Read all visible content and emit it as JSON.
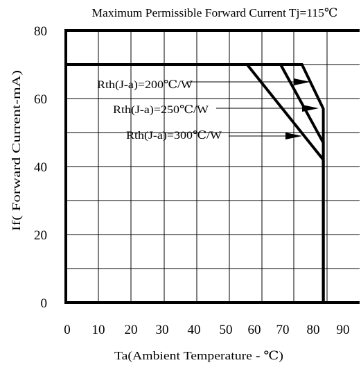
{
  "chart_data": {
    "type": "line",
    "title": "Maximum Permissible Forward Current Tj=115℃",
    "xlabel": "Ta(Ambient Temperature - ℃)",
    "ylabel": "If( Forward Current-mA)",
    "xlim": [
      0,
      90
    ],
    "ylim": [
      0,
      80
    ],
    "x_ticks": [
      "0",
      "10",
      "20",
      "30",
      "40",
      "50",
      "60",
      "70",
      "80",
      "90"
    ],
    "y_ticks": [
      "0",
      "20",
      "40",
      "60",
      "80"
    ],
    "grid": true,
    "series": [
      {
        "name": "Rth(J-a)=200℃/W",
        "x": [
          0,
          77,
          84,
          84
        ],
        "y": [
          70,
          70,
          57,
          0
        ]
      },
      {
        "name": "Rth(J-a)=250℃/W",
        "x": [
          0,
          70,
          84,
          84
        ],
        "y": [
          70,
          70,
          47,
          0
        ]
      },
      {
        "name": "Rth(J-a)=300℃/W",
        "x": [
          0,
          59,
          84,
          84
        ],
        "y": [
          70,
          70,
          42,
          0
        ]
      }
    ],
    "annotations": [
      {
        "text": "Rth(J-a)=200℃/W"
      },
      {
        "text": "Rth(J-a)=250℃/W"
      },
      {
        "text": "Rth(J-a)=300℃/W"
      }
    ]
  }
}
